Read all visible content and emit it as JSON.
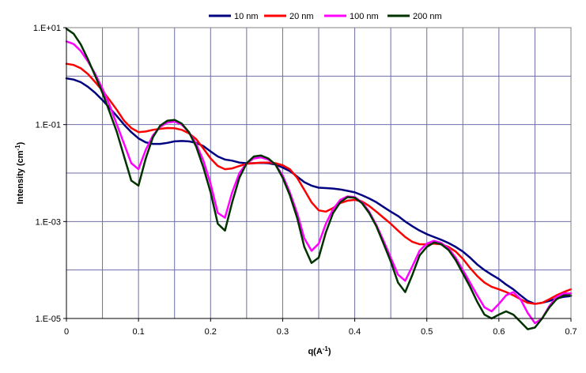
{
  "chart_data": {
    "type": "line",
    "title": "",
    "xlabel": "q(A-1)",
    "xlabel_main": "q(A",
    "xlabel_sup": "-1",
    "xlabel_end": ")",
    "ylabel": "Intensity (cm-1)",
    "ylabel_main": "Intensity (cm",
    "ylabel_sup": "-1",
    "ylabel_end": ")",
    "xlim": [
      0,
      0.7
    ],
    "ylim": [
      1e-05,
      10
    ],
    "yscale": "log",
    "grid": true,
    "legend_position": "top",
    "x_ticks": [
      "0",
      "0.1",
      "0.2",
      "0.3",
      "0.4",
      "0.5",
      "0.6",
      "0.7"
    ],
    "x_tick_values": [
      0,
      0.1,
      0.2,
      0.3,
      0.4,
      0.5,
      0.6,
      0.7
    ],
    "x_grid_values": [
      0.05,
      0.1,
      0.15,
      0.2,
      0.25,
      0.3,
      0.35,
      0.4,
      0.45,
      0.5,
      0.55,
      0.6,
      0.65
    ],
    "y_ticks": [
      "1.E+01",
      "1.E-01",
      "1.E-03",
      "1.E-05"
    ],
    "y_tick_values": [
      10,
      0.1,
      0.001,
      1e-05
    ],
    "series": [
      {
        "name": "10 nm",
        "color": "#000080",
        "x": [
          0,
          0.01,
          0.02,
          0.03,
          0.04,
          0.05,
          0.06,
          0.07,
          0.08,
          0.09,
          0.1,
          0.11,
          0.12,
          0.13,
          0.14,
          0.15,
          0.16,
          0.17,
          0.18,
          0.19,
          0.2,
          0.21,
          0.22,
          0.23,
          0.24,
          0.25,
          0.26,
          0.27,
          0.28,
          0.29,
          0.3,
          0.31,
          0.32,
          0.33,
          0.34,
          0.35,
          0.36,
          0.37,
          0.38,
          0.39,
          0.4,
          0.41,
          0.42,
          0.43,
          0.44,
          0.45,
          0.46,
          0.47,
          0.48,
          0.49,
          0.5,
          0.51,
          0.52,
          0.53,
          0.54,
          0.55,
          0.56,
          0.57,
          0.58,
          0.59,
          0.6,
          0.61,
          0.62,
          0.63,
          0.64,
          0.65,
          0.66,
          0.67,
          0.68,
          0.69,
          0.7
        ],
        "y": [
          0.9,
          0.85,
          0.75,
          0.6,
          0.45,
          0.32,
          0.22,
          0.15,
          0.1,
          0.07,
          0.052,
          0.043,
          0.04,
          0.04,
          0.042,
          0.045,
          0.046,
          0.045,
          0.042,
          0.036,
          0.028,
          0.022,
          0.019,
          0.018,
          0.0165,
          0.016,
          0.016,
          0.0162,
          0.016,
          0.015,
          0.013,
          0.011,
          0.0085,
          0.0065,
          0.0055,
          0.005,
          0.0049,
          0.0048,
          0.0046,
          0.0043,
          0.004,
          0.0035,
          0.003,
          0.0025,
          0.002,
          0.0016,
          0.0013,
          0.001,
          0.0008,
          0.00065,
          0.00055,
          0.00048,
          0.00042,
          0.00036,
          0.0003,
          0.00024,
          0.00018,
          0.00013,
          0.0001,
          8e-05,
          6.5e-05,
          5e-05,
          4e-05,
          3e-05,
          2.3e-05,
          2e-05,
          2.1e-05,
          2.3e-05,
          2.6e-05,
          2.8e-05,
          2.9e-05
        ]
      },
      {
        "name": "20 nm",
        "color": "#ff0000",
        "x": [
          0,
          0.01,
          0.02,
          0.03,
          0.04,
          0.05,
          0.06,
          0.07,
          0.08,
          0.09,
          0.1,
          0.11,
          0.12,
          0.13,
          0.14,
          0.15,
          0.16,
          0.17,
          0.18,
          0.19,
          0.2,
          0.21,
          0.22,
          0.23,
          0.24,
          0.25,
          0.26,
          0.27,
          0.28,
          0.29,
          0.3,
          0.31,
          0.32,
          0.33,
          0.34,
          0.35,
          0.36,
          0.37,
          0.38,
          0.39,
          0.4,
          0.41,
          0.42,
          0.43,
          0.44,
          0.45,
          0.46,
          0.47,
          0.48,
          0.49,
          0.5,
          0.51,
          0.52,
          0.53,
          0.54,
          0.55,
          0.56,
          0.57,
          0.58,
          0.59,
          0.6,
          0.61,
          0.62,
          0.63,
          0.64,
          0.65,
          0.66,
          0.67,
          0.68,
          0.69,
          0.7
        ],
        "y": [
          1.8,
          1.7,
          1.45,
          1.1,
          0.75,
          0.5,
          0.32,
          0.2,
          0.12,
          0.085,
          0.07,
          0.072,
          0.078,
          0.082,
          0.085,
          0.084,
          0.078,
          0.066,
          0.05,
          0.032,
          0.02,
          0.014,
          0.012,
          0.0125,
          0.014,
          0.0155,
          0.016,
          0.0165,
          0.0165,
          0.016,
          0.0145,
          0.012,
          0.008,
          0.0045,
          0.0025,
          0.0017,
          0.0016,
          0.0019,
          0.0024,
          0.0027,
          0.0028,
          0.0026,
          0.0021,
          0.0016,
          0.0012,
          0.0009,
          0.00065,
          0.00048,
          0.00038,
          0.00034,
          0.00034,
          0.00035,
          0.00034,
          0.0003,
          0.00024,
          0.00017,
          0.00011,
          7.5e-05,
          5.5e-05,
          4.5e-05,
          4e-05,
          3.5e-05,
          3e-05,
          2.5e-05,
          2.1e-05,
          2e-05,
          2.1e-05,
          2.5e-05,
          3e-05,
          3.5e-05,
          4e-05
        ]
      },
      {
        "name": "100 nm",
        "color": "#ff00ff",
        "x": [
          0,
          0.01,
          0.02,
          0.03,
          0.04,
          0.05,
          0.06,
          0.07,
          0.08,
          0.09,
          0.1,
          0.11,
          0.12,
          0.13,
          0.14,
          0.15,
          0.16,
          0.17,
          0.18,
          0.19,
          0.2,
          0.21,
          0.22,
          0.23,
          0.24,
          0.25,
          0.26,
          0.27,
          0.28,
          0.29,
          0.3,
          0.31,
          0.32,
          0.33,
          0.34,
          0.35,
          0.36,
          0.37,
          0.38,
          0.39,
          0.4,
          0.41,
          0.42,
          0.43,
          0.44,
          0.45,
          0.46,
          0.47,
          0.48,
          0.49,
          0.5,
          0.51,
          0.52,
          0.53,
          0.54,
          0.55,
          0.56,
          0.57,
          0.58,
          0.59,
          0.6,
          0.61,
          0.62,
          0.63,
          0.64,
          0.65,
          0.66,
          0.67,
          0.68,
          0.69,
          0.7
        ],
        "y": [
          5.2,
          4.6,
          3.3,
          2.0,
          1.1,
          0.55,
          0.25,
          0.1,
          0.04,
          0.016,
          0.012,
          0.03,
          0.06,
          0.09,
          0.11,
          0.115,
          0.1,
          0.07,
          0.04,
          0.018,
          0.006,
          0.0015,
          0.0012,
          0.004,
          0.01,
          0.016,
          0.02,
          0.021,
          0.019,
          0.015,
          0.009,
          0.004,
          0.0015,
          0.00045,
          0.00025,
          0.00035,
          0.0009,
          0.0018,
          0.0028,
          0.0033,
          0.0032,
          0.0025,
          0.0016,
          0.00085,
          0.0004,
          0.00018,
          8e-05,
          6e-05,
          0.00012,
          0.00025,
          0.00035,
          0.0004,
          0.00036,
          0.00028,
          0.00018,
          0.0001,
          5.5e-05,
          3e-05,
          1.7e-05,
          1.4e-05,
          2e-05,
          3e-05,
          3.5e-05,
          2.5e-05,
          1.3e-05,
          8e-06,
          1e-05,
          1.8e-05,
          2.8e-05,
          3.3e-05,
          3.3e-05
        ]
      },
      {
        "name": "200 nm",
        "color": "#003300",
        "x": [
          0,
          0.01,
          0.02,
          0.03,
          0.04,
          0.05,
          0.06,
          0.07,
          0.08,
          0.09,
          0.1,
          0.11,
          0.12,
          0.13,
          0.14,
          0.15,
          0.16,
          0.17,
          0.18,
          0.19,
          0.2,
          0.21,
          0.22,
          0.23,
          0.24,
          0.25,
          0.26,
          0.27,
          0.28,
          0.29,
          0.3,
          0.31,
          0.32,
          0.33,
          0.34,
          0.35,
          0.36,
          0.37,
          0.38,
          0.39,
          0.4,
          0.41,
          0.42,
          0.43,
          0.44,
          0.45,
          0.46,
          0.47,
          0.48,
          0.49,
          0.5,
          0.51,
          0.52,
          0.53,
          0.54,
          0.55,
          0.56,
          0.57,
          0.58,
          0.59,
          0.6,
          0.61,
          0.62,
          0.63,
          0.64,
          0.65,
          0.66,
          0.67,
          0.68,
          0.69,
          0.7
        ],
        "y": [
          9.5,
          7.5,
          4.5,
          2.2,
          1.0,
          0.45,
          0.18,
          0.07,
          0.022,
          0.007,
          0.0055,
          0.02,
          0.055,
          0.095,
          0.12,
          0.125,
          0.105,
          0.07,
          0.035,
          0.013,
          0.004,
          0.0009,
          0.00065,
          0.0025,
          0.008,
          0.016,
          0.022,
          0.023,
          0.02,
          0.015,
          0.008,
          0.0035,
          0.0012,
          0.0003,
          0.00014,
          0.00018,
          0.0006,
          0.0015,
          0.0025,
          0.0032,
          0.0031,
          0.0024,
          0.0015,
          0.0008,
          0.00035,
          0.00015,
          5.5e-05,
          3.5e-05,
          8e-05,
          0.0002,
          0.0003,
          0.00037,
          0.00034,
          0.00026,
          0.00016,
          8.5e-05,
          4.5e-05,
          2.2e-05,
          1.2e-05,
          1e-05,
          1.2e-05,
          1.4e-05,
          1.2e-05,
          8.5e-06,
          6e-06,
          6.5e-06,
          1e-05,
          1.7e-05,
          2.5e-05,
          3e-05,
          3e-05
        ]
      }
    ]
  }
}
